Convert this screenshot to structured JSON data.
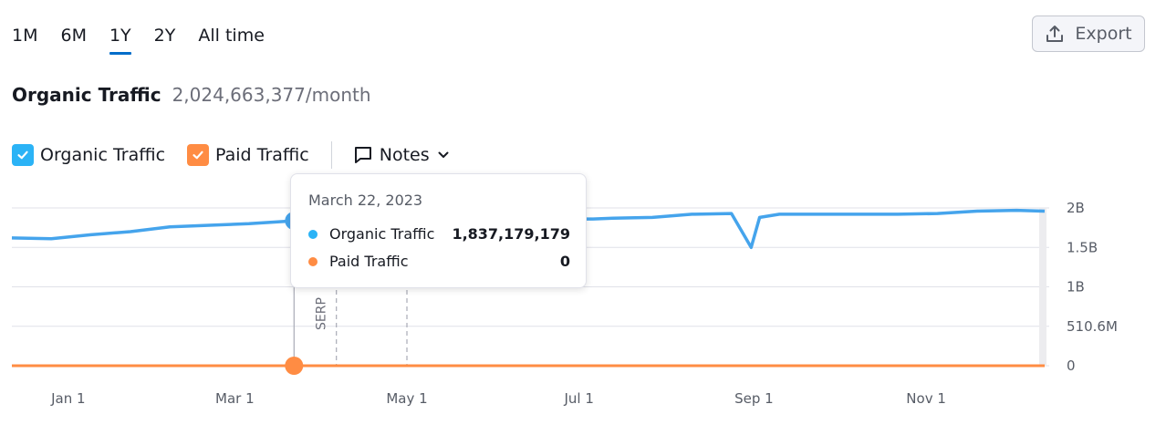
{
  "range_tabs": [
    {
      "label": "1M",
      "active": false
    },
    {
      "label": "6M",
      "active": false
    },
    {
      "label": "1Y",
      "active": true
    },
    {
      "label": "2Y",
      "active": false
    },
    {
      "label": "All time",
      "active": false
    }
  ],
  "export": {
    "label": "Export",
    "icon": "upload-icon"
  },
  "headline": {
    "title": "Organic Traffic",
    "value": "2,024,663,377/month"
  },
  "legend": {
    "organic": {
      "label": "Organic Traffic",
      "checked": true,
      "color": "#2bb3f6"
    },
    "paid": {
      "label": "Paid Traffic",
      "checked": true,
      "color": "#ff8c43"
    },
    "notes": {
      "label": "Notes",
      "icon": "comment-icon"
    }
  },
  "tooltip": {
    "date": "March 22, 2023",
    "rows": [
      {
        "name": "Organic Traffic",
        "value": "1,837,179,179",
        "color": "#2bb3f6"
      },
      {
        "name": "Paid Traffic",
        "value": "0",
        "color": "#ff8c43"
      }
    ]
  },
  "chart_data": {
    "type": "line",
    "x_tick_labels": [
      "Jan 1",
      "Mar 1",
      "May 1",
      "Jul 1",
      "Sep 1",
      "Nov 1"
    ],
    "y_tick_labels": [
      "2B",
      "1.5B",
      "1B",
      "510.6M",
      "0"
    ],
    "ylim": [
      0,
      2000000000
    ],
    "grid": true,
    "annotations": [
      {
        "label": "SERP",
        "date": "2023-04-06"
      }
    ],
    "highlight_date": "2023-03-22",
    "series": [
      {
        "name": "Organic Traffic",
        "color": "#45a4ec",
        "x": [
          "2022-12-12",
          "2022-12-26",
          "2023-01-09",
          "2023-01-23",
          "2023-02-06",
          "2023-02-20",
          "2023-03-06",
          "2023-03-22",
          "2023-04-05",
          "2023-04-20",
          "2023-05-04",
          "2023-05-18",
          "2023-06-01",
          "2023-06-15",
          "2023-06-29",
          "2023-07-06",
          "2023-07-13",
          "2023-07-27",
          "2023-08-10",
          "2023-08-24",
          "2023-08-31",
          "2023-09-03",
          "2023-09-10",
          "2023-09-24",
          "2023-10-08",
          "2023-10-22",
          "2023-11-05",
          "2023-11-19",
          "2023-12-03",
          "2023-12-13"
        ],
        "values": [
          1620000000,
          1610000000,
          1660000000,
          1700000000,
          1760000000,
          1780000000,
          1800000000,
          1837179179,
          1840000000,
          1845000000,
          1850000000,
          1850000000,
          1855000000,
          1860000000,
          1860000000,
          1860000000,
          1870000000,
          1880000000,
          1920000000,
          1930000000,
          1500000000,
          1880000000,
          1920000000,
          1920000000,
          1920000000,
          1920000000,
          1930000000,
          1960000000,
          1970000000,
          1960000000
        ]
      },
      {
        "name": "Paid Traffic",
        "color": "#ff8c43",
        "x": [
          "2022-12-12",
          "2023-12-13"
        ],
        "values": [
          0,
          0
        ]
      }
    ]
  }
}
